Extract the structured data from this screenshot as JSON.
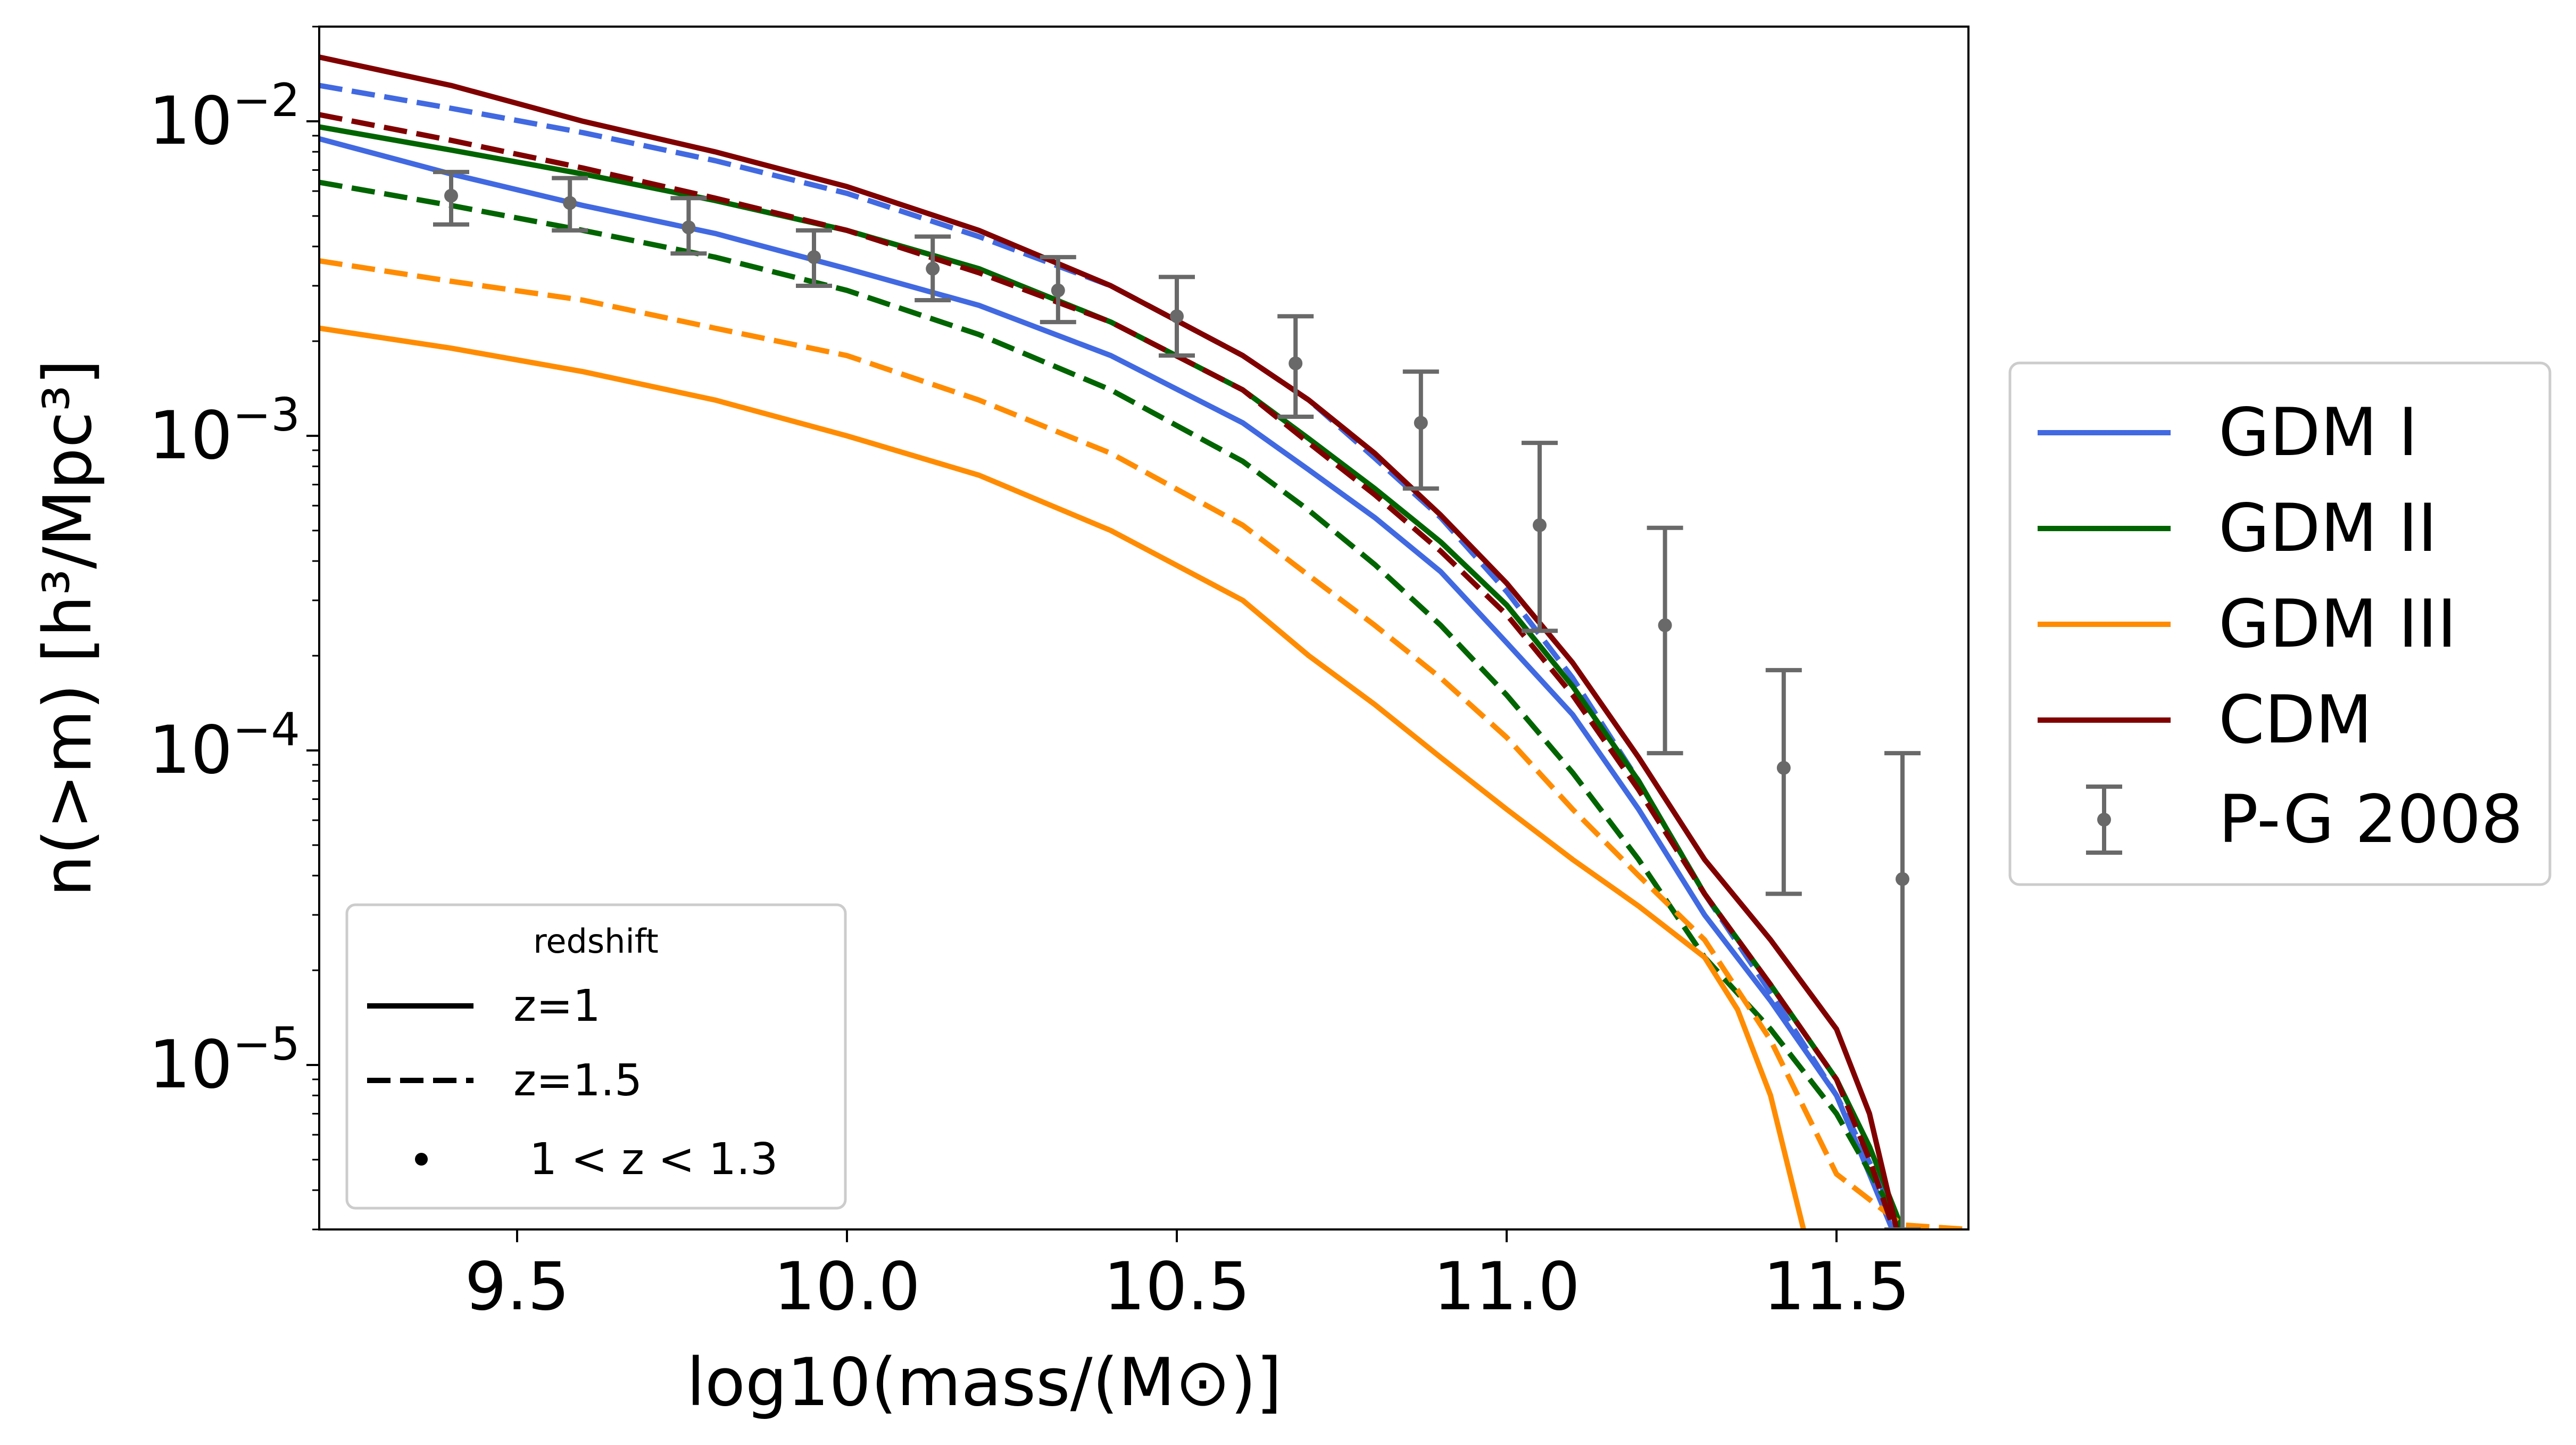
{
  "chart_data": {
    "type": "line",
    "xlabel": "log10(mass/(M⊙)]",
    "ylabel": "n(>m) [h³/Mpc³]",
    "xlim": [
      9.2,
      11.7
    ],
    "ylim": [
      3e-06,
      0.02
    ],
    "yscale": "log",
    "x_ticks": [
      {
        "value": 9.5,
        "label": "9.5"
      },
      {
        "value": 10.0,
        "label": "10.0"
      },
      {
        "value": 10.5,
        "label": "10.5"
      },
      {
        "value": 11.0,
        "label": "11.0"
      },
      {
        "value": 11.5,
        "label": "11.5"
      }
    ],
    "y_ticks": [
      {
        "value": 0.01,
        "base": "10",
        "exp": "−2"
      },
      {
        "value": 0.001,
        "base": "10",
        "exp": "−3"
      },
      {
        "value": 0.0001,
        "base": "10",
        "exp": "−4"
      },
      {
        "value": 1e-05,
        "base": "10",
        "exp": "−5"
      }
    ],
    "grid": false,
    "series": [
      {
        "name": "GDM I",
        "color": "#4169e1",
        "redshift": "z=1",
        "style": "solid",
        "x": [
          9.2,
          9.4,
          9.6,
          9.8,
          10.0,
          10.2,
          10.4,
          10.6,
          10.7,
          10.8,
          10.9,
          11.0,
          11.1,
          11.2,
          11.3,
          11.4,
          11.5,
          11.55,
          11.6
        ],
        "y": [
          0.0088,
          0.0068,
          0.0054,
          0.0044,
          0.0034,
          0.0026,
          0.0018,
          0.0011,
          0.00078,
          0.00055,
          0.00037,
          0.00022,
          0.00013,
          6.5e-05,
          3e-05,
          1.6e-05,
          8e-06,
          4.5e-06,
          2.5e-06
        ]
      },
      {
        "name": "GDM I",
        "color": "#4169e1",
        "redshift": "z=1.5",
        "style": "dashed",
        "x": [
          9.2,
          9.4,
          9.6,
          9.8,
          10.0,
          10.2,
          10.4,
          10.6,
          10.7,
          10.8,
          10.9,
          11.0,
          11.1,
          11.2,
          11.3,
          11.4,
          11.5,
          11.6
        ],
        "y": [
          0.013,
          0.011,
          0.0092,
          0.0075,
          0.0059,
          0.0043,
          0.003,
          0.0018,
          0.0013,
          0.00085,
          0.00055,
          0.00032,
          0.00017,
          8e-05,
          3.5e-05,
          1.7e-05,
          8e-06,
          3e-06
        ]
      },
      {
        "name": "GDM II",
        "color": "#006400",
        "redshift": "z=1",
        "style": "solid",
        "x": [
          9.2,
          9.4,
          9.6,
          9.8,
          10.0,
          10.2,
          10.4,
          10.6,
          10.7,
          10.8,
          10.9,
          11.0,
          11.1,
          11.2,
          11.3,
          11.4,
          11.5,
          11.55,
          11.6
        ],
        "y": [
          0.0096,
          0.0081,
          0.0068,
          0.0056,
          0.0045,
          0.0034,
          0.0023,
          0.0014,
          0.00098,
          0.00068,
          0.00046,
          0.00029,
          0.00016,
          8e-05,
          3.5e-05,
          1.8e-05,
          9e-06,
          5.5e-06,
          3e-06
        ]
      },
      {
        "name": "GDM II",
        "color": "#006400",
        "redshift": "z=1.5",
        "style": "dashed",
        "x": [
          9.2,
          9.4,
          9.6,
          9.8,
          10.0,
          10.2,
          10.4,
          10.6,
          10.7,
          10.8,
          10.9,
          11.0,
          11.1,
          11.2,
          11.3,
          11.4,
          11.5,
          11.6
        ],
        "y": [
          0.0064,
          0.0054,
          0.0045,
          0.0037,
          0.0029,
          0.0021,
          0.0014,
          0.00083,
          0.00058,
          0.00039,
          0.00025,
          0.00015,
          8.5e-05,
          4.5e-05,
          2.2e-05,
          1.3e-05,
          7e-06,
          3e-06
        ]
      },
      {
        "name": "GDM III",
        "color": "#ff8c00",
        "redshift": "z=1",
        "style": "solid",
        "x": [
          9.2,
          9.4,
          9.6,
          9.8,
          10.0,
          10.2,
          10.4,
          10.6,
          10.7,
          10.8,
          10.9,
          11.0,
          11.1,
          11.2,
          11.3,
          11.35,
          11.4,
          11.45
        ],
        "y": [
          0.0022,
          0.0019,
          0.0016,
          0.0013,
          0.001,
          0.00075,
          0.0005,
          0.0003,
          0.0002,
          0.00014,
          9.5e-05,
          6.5e-05,
          4.5e-05,
          3.2e-05,
          2.2e-05,
          1.5e-05,
          8e-06,
          3e-06
        ]
      },
      {
        "name": "GDM III",
        "color": "#ff8c00",
        "redshift": "z=1.5",
        "style": "dashed",
        "x": [
          9.2,
          9.4,
          9.6,
          9.8,
          10.0,
          10.2,
          10.4,
          10.6,
          10.7,
          10.8,
          10.9,
          11.0,
          11.1,
          11.2,
          11.3,
          11.4,
          11.5,
          11.6,
          11.7
        ],
        "y": [
          0.0036,
          0.0031,
          0.0027,
          0.0022,
          0.0018,
          0.0013,
          0.00088,
          0.00052,
          0.00036,
          0.00025,
          0.00017,
          0.00011,
          6.5e-05,
          4e-05,
          2.5e-05,
          1.2e-05,
          4.5e-06,
          3.1e-06,
          3e-06
        ]
      },
      {
        "name": "CDM",
        "color": "#800000",
        "redshift": "z=1",
        "style": "solid",
        "x": [
          9.2,
          9.4,
          9.6,
          9.8,
          10.0,
          10.2,
          10.4,
          10.6,
          10.7,
          10.8,
          10.9,
          11.0,
          11.1,
          11.2,
          11.3,
          11.4,
          11.5,
          11.55,
          11.6
        ],
        "y": [
          0.016,
          0.013,
          0.01,
          0.008,
          0.0062,
          0.0045,
          0.003,
          0.0018,
          0.0013,
          0.00088,
          0.00056,
          0.00034,
          0.00019,
          9.5e-05,
          4.5e-05,
          2.5e-05,
          1.3e-05,
          7e-06,
          2.5e-06
        ]
      },
      {
        "name": "CDM",
        "color": "#800000",
        "redshift": "z=1.5",
        "style": "dashed",
        "x": [
          9.2,
          9.4,
          9.6,
          9.8,
          10.0,
          10.2,
          10.4,
          10.6,
          10.7,
          10.8,
          10.9,
          11.0,
          11.1,
          11.2,
          11.3,
          11.4,
          11.5,
          11.55,
          11.6
        ],
        "y": [
          0.0105,
          0.0087,
          0.0071,
          0.0057,
          0.0045,
          0.0033,
          0.0023,
          0.0014,
          0.00095,
          0.00065,
          0.00043,
          0.00027,
          0.00015,
          7.5e-05,
          3.5e-05,
          1.8e-05,
          9e-06,
          5e-06,
          2.5e-06
        ]
      }
    ],
    "observations": {
      "name": "P-G 2008",
      "color": "#696969",
      "redshift_label": "1 < z < 1.3",
      "x": [
        9.4,
        9.58,
        9.76,
        9.95,
        10.13,
        10.32,
        10.5,
        10.68,
        10.87,
        11.05,
        11.24,
        11.42,
        11.6
      ],
      "y": [
        0.0058,
        0.0055,
        0.0046,
        0.0037,
        0.0034,
        0.0029,
        0.0024,
        0.0017,
        0.0011,
        0.00052,
        0.00025,
        8.8e-05,
        3.9e-05
      ],
      "y_low": [
        0.0047,
        0.0045,
        0.0038,
        0.003,
        0.0027,
        0.0023,
        0.0018,
        0.00115,
        0.00068,
        0.00024,
        9.8e-05,
        3.5e-05,
        3e-06
      ],
      "y_high": [
        0.0069,
        0.0066,
        0.0057,
        0.0045,
        0.0043,
        0.0037,
        0.0032,
        0.0024,
        0.0016,
        0.00095,
        0.00051,
        0.00018,
        9.8e-05
      ]
    },
    "legend": {
      "location": "right-outside",
      "entries": [
        {
          "label": "GDM I",
          "color": "#4169e1",
          "kind": "line"
        },
        {
          "label": "GDM II",
          "color": "#006400",
          "kind": "line"
        },
        {
          "label": "GDM III",
          "color": "#ff8c00",
          "kind": "line"
        },
        {
          "label": "CDM",
          "color": "#800000",
          "kind": "line"
        },
        {
          "label": "P-G 2008",
          "color": "#696969",
          "kind": "errorbar"
        }
      ]
    },
    "redshift_legend": {
      "title": "redshift",
      "location": "lower-left",
      "entries": [
        {
          "label": "z=1",
          "kind": "solid"
        },
        {
          "label": "z=1.5",
          "kind": "dashed"
        },
        {
          "label": "1 < z < 1.3",
          "kind": "dot"
        }
      ]
    }
  }
}
